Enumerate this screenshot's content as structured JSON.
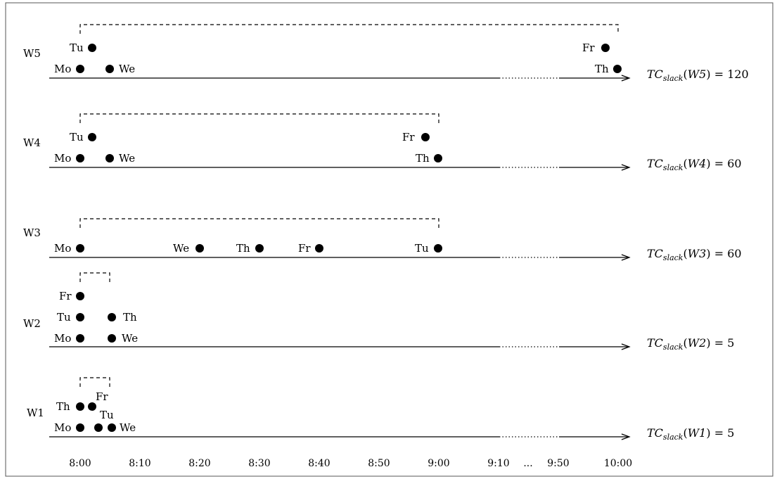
{
  "rows": [
    {
      "name": "W5",
      "tc": {
        "prefix": "TC",
        "sub": "slack",
        "arg": "W5",
        "value": "120"
      },
      "points": [
        {
          "day": "Mo",
          "time": 0
        },
        {
          "day": "We",
          "time": 5
        },
        {
          "day": "Tu",
          "time": 2
        },
        {
          "day": "Fr",
          "time": 118
        },
        {
          "day": "Th",
          "time": 120
        }
      ],
      "bracket_end": 120
    },
    {
      "name": "W4",
      "tc": {
        "prefix": "TC",
        "sub": "slack",
        "arg": "W4",
        "value": "60"
      },
      "points": [
        {
          "day": "Mo",
          "time": 0
        },
        {
          "day": "We",
          "time": 5
        },
        {
          "day": "Tu",
          "time": 2
        },
        {
          "day": "Fr",
          "time": 58
        },
        {
          "day": "Th",
          "time": 60
        }
      ],
      "bracket_end": 60
    },
    {
      "name": "W3",
      "tc": {
        "prefix": "TC",
        "sub": "slack",
        "arg": "W3",
        "value": "60"
      },
      "points": [
        {
          "day": "Mo",
          "time": 0
        },
        {
          "day": "We",
          "time": 20
        },
        {
          "day": "Th",
          "time": 30
        },
        {
          "day": "Fr",
          "time": 40
        },
        {
          "day": "Tu",
          "time": 60
        }
      ],
      "bracket_end": 60
    },
    {
      "name": "W2",
      "tc": {
        "prefix": "TC",
        "sub": "slack",
        "arg": "W2",
        "value": "5"
      },
      "points": [
        {
          "day": "Mo",
          "time": 0
        },
        {
          "day": "Tu",
          "time": 0
        },
        {
          "day": "Fr",
          "time": 0
        },
        {
          "day": "We",
          "time": 5
        },
        {
          "day": "Th",
          "time": 5
        }
      ],
      "bracket_end": 5
    },
    {
      "name": "W1",
      "tc": {
        "prefix": "TC",
        "sub": "slack",
        "arg": "W1",
        "value": "5"
      },
      "points": [
        {
          "day": "Mo",
          "time": 0
        },
        {
          "day": "Tu",
          "time": 3
        },
        {
          "day": "We",
          "time": 5
        },
        {
          "day": "Th",
          "time": 0
        },
        {
          "day": "Fr",
          "time": 2
        }
      ],
      "bracket_end": 5
    }
  ],
  "ticks": [
    "8:00",
    "8:10",
    "8:20",
    "8:30",
    "8:40",
    "8:50",
    "9:00",
    "9:10",
    "9:50",
    "10:00"
  ],
  "tick_ellipsis": "..."
}
